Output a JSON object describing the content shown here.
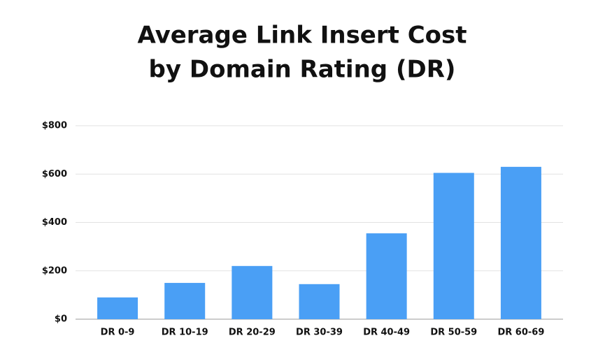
{
  "chart_data": {
    "type": "bar",
    "title_lines": [
      "Average Link Insert Cost",
      "by Domain Rating (DR)"
    ],
    "categories": [
      "DR 0-9",
      "DR 10-19",
      "DR 20-29",
      "DR 30-39",
      "DR 40-49",
      "DR 50-59",
      "DR 60-69"
    ],
    "values": [
      90,
      150,
      220,
      145,
      355,
      605,
      630
    ],
    "color": "#4a9ff5",
    "ylim": [
      0,
      800
    ],
    "yticks": [
      {
        "value": 0,
        "label": "$0"
      },
      {
        "value": 200,
        "label": "$200"
      },
      {
        "value": 400,
        "label": "$400"
      },
      {
        "value": 600,
        "label": "$600"
      },
      {
        "value": 800,
        "label": "$800"
      }
    ],
    "grid": true
  }
}
